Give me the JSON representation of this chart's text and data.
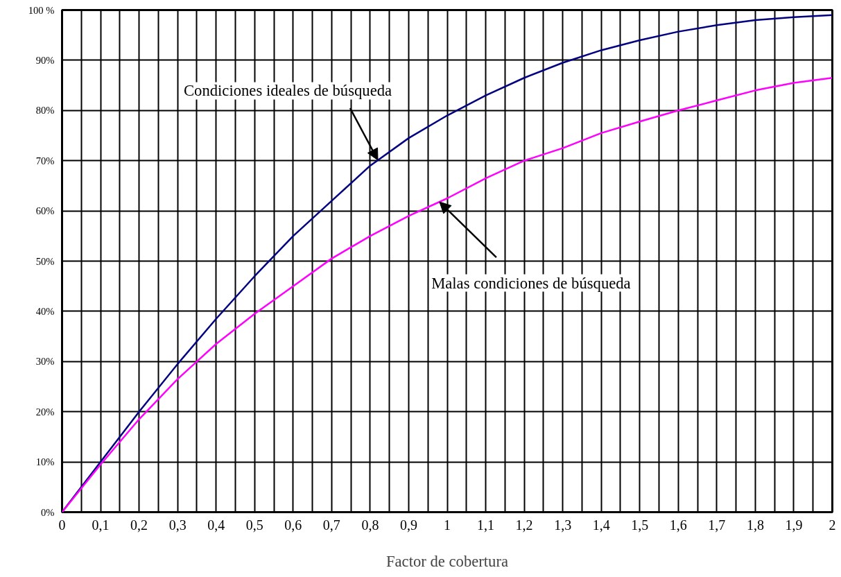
{
  "chart_data": {
    "type": "line",
    "xlabel": "Factor de cobertura",
    "x": [
      0,
      0.1,
      0.2,
      0.3,
      0.4,
      0.5,
      0.6,
      0.7,
      0.8,
      0.9,
      1.0,
      1.1,
      1.2,
      1.3,
      1.4,
      1.5,
      1.6,
      1.7,
      1.8,
      1.9,
      2.0
    ],
    "series": [
      {
        "color": "#000080",
        "values": [
          0,
          10,
          20,
          29.5,
          38.5,
          47,
          55,
          62,
          69,
          74.5,
          79,
          83,
          86.5,
          89.5,
          92,
          94,
          95.7,
          97,
          98,
          98.6,
          99
        ]
      },
      {
        "color": "#ff00ff",
        "values": [
          0,
          9.5,
          18.5,
          26.5,
          33.5,
          39.5,
          45,
          50.5,
          55,
          59,
          62.5,
          66.5,
          70,
          72.5,
          75.5,
          77.8,
          80,
          82,
          84,
          85.5,
          86.5
        ]
      }
    ],
    "xlim": [
      0,
      2
    ],
    "ylim": [
      0,
      100
    ],
    "xticks": [
      0,
      {
        "value": 0.05,
        "label": null
      },
      {
        "value": 0.1,
        "label": "0,1"
      },
      {
        "value": 0.15,
        "label": null
      },
      {
        "value": 0.2,
        "label": "0,2"
      },
      {
        "value": 0.25,
        "label": null
      },
      {
        "value": 0.3,
        "label": "0,3"
      },
      {
        "value": 0.35,
        "label": null
      },
      {
        "value": 0.4,
        "label": "0,4"
      },
      {
        "value": 0.45,
        "label": null
      },
      {
        "value": 0.5,
        "label": "0,5"
      },
      {
        "value": 0.55,
        "label": null
      },
      {
        "value": 0.6,
        "label": "0,6"
      },
      {
        "value": 0.65,
        "label": null
      },
      {
        "value": 0.7,
        "label": "0,7"
      },
      {
        "value": 0.75,
        "label": null
      },
      {
        "value": 0.8,
        "label": "0,8"
      },
      {
        "value": 0.85,
        "label": null
      },
      {
        "value": 0.9,
        "label": "0,9"
      },
      {
        "value": 0.95,
        "label": null
      },
      1,
      {
        "value": 1.05,
        "label": null
      },
      {
        "value": 1.1,
        "label": "1,1"
      },
      {
        "value": 1.15,
        "label": null
      },
      {
        "value": 1.2,
        "label": "1,2"
      },
      {
        "value": 1.25,
        "label": null
      },
      {
        "value": 1.3,
        "label": "1,3"
      },
      {
        "value": 1.35,
        "label": null
      },
      {
        "value": 1.4,
        "label": "1,4"
      },
      {
        "value": 1.45,
        "label": null
      },
      {
        "value": 1.5,
        "label": "1,5"
      },
      {
        "value": 1.55,
        "label": null
      },
      {
        "value": 1.6,
        "label": "1,6"
      },
      {
        "value": 1.65,
        "label": null
      },
      {
        "value": 1.7,
        "label": "1,7"
      },
      {
        "value": 1.75,
        "label": null
      },
      {
        "value": 1.8,
        "label": "1,8"
      },
      {
        "value": 1.85,
        "label": null
      },
      {
        "value": 1.9,
        "label": "1,9"
      },
      {
        "value": 1.95,
        "label": null
      },
      2
    ],
    "yticks": [
      {
        "value": 0,
        "label": "0%"
      },
      {
        "value": 10,
        "label": "10%"
      },
      {
        "value": 20,
        "label": "20%"
      },
      {
        "value": 30,
        "label": "30%"
      },
      {
        "value": 40,
        "label": "40%"
      },
      {
        "value": 50,
        "label": "50%"
      },
      {
        "value": 60,
        "label": "60%"
      },
      {
        "value": 70,
        "label": "70%"
      },
      {
        "value": 80,
        "label": "80%"
      },
      {
        "value": 90,
        "label": "90%"
      },
      {
        "value": 100,
        "label": "100 %"
      }
    ],
    "grid": true,
    "marker": "none",
    "line_style": "solid",
    "annotations": [
      {
        "text": "Condiciones ideales de búsqueda",
        "x": 0.82,
        "y": 70.1
      },
      {
        "text": "Malas condiciones de búsqueda",
        "x": 0.98,
        "y": 61.8
      }
    ]
  }
}
